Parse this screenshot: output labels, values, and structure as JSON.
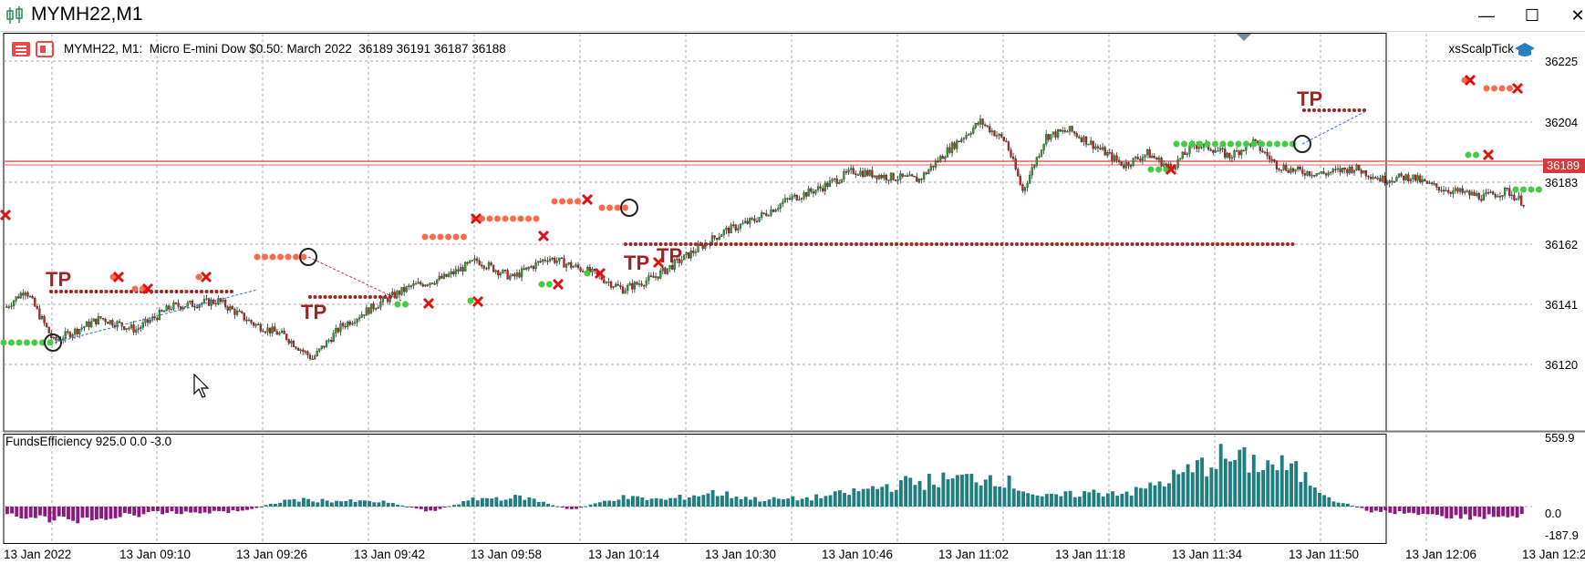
{
  "window": {
    "title": "MYMH22,M1",
    "minimize": "—",
    "maximize": "☐",
    "close": "✕"
  },
  "chart": {
    "info": "MYMH22, M1:  Micro E-mini Dow $0.50: March 2022  36189 36191 36187 36188",
    "expert": "xsScalpTick",
    "current_price": "36189",
    "price_axis": [
      "36225",
      "36204",
      "36183",
      "36162",
      "36141",
      "36120"
    ],
    "tp_label": "TP",
    "colors": {
      "bull": "#2e9e2e",
      "bear": "#c81e1e",
      "grid": "#a8a8a8",
      "bid_line": "#e06060",
      "dots_red": "#ff6a4a",
      "dots_green": "#44cc44",
      "dots_dark": "#a02424"
    }
  },
  "indicator": {
    "label": "FundsEfficiency 925.0 0.0 -3.0",
    "axis": [
      "559.9",
      "0.0",
      "-187.9"
    ],
    "colors": {
      "pos": "#1f7f7f",
      "neg": "#8b1a7f"
    }
  },
  "time_axis": [
    "13 Jan 2022",
    "13 Jan 09:10",
    "13 Jan 09:26",
    "13 Jan 09:42",
    "13 Jan 09:58",
    "13 Jan 10:14",
    "13 Jan 10:30",
    "13 Jan 10:46",
    "13 Jan 11:02",
    "13 Jan 11:18",
    "13 Jan 11:34",
    "13 Jan 11:50",
    "13 Jan 12:06",
    "13 Jan 12:2"
  ]
}
